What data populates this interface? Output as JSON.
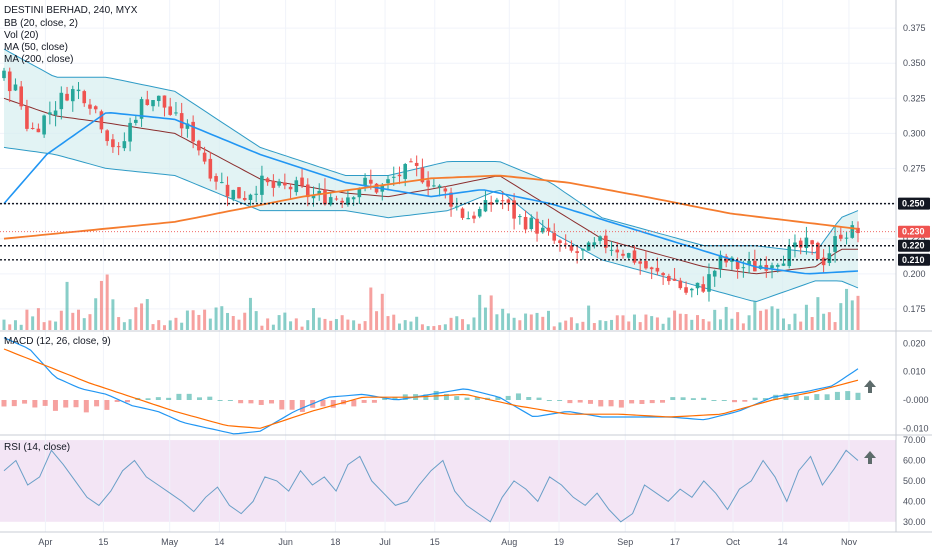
{
  "legend": {
    "symbol": "DESTINI BERHAD, 240, MYX",
    "bb": "BB (20, close, 2)",
    "vol": "Vol (20)",
    "ma50": "MA (50, close)",
    "ma200": "MA (200, close)",
    "macd": "MACD (12, 26, close, 9)",
    "rsi": "RSI (14, close)"
  },
  "price_axis": [
    "0.375",
    "0.350",
    "0.325",
    "0.300",
    "0.275",
    "0.250",
    "0.225",
    "0.200",
    "0.175"
  ],
  "macd_axis": [
    "0.020",
    "0.010",
    "-0.000",
    "-0.010"
  ],
  "rsi_axis": [
    "70.00",
    "60.00",
    "50.00",
    "40.00",
    "30.00"
  ],
  "time_axis": [
    "Apr",
    "15",
    "May",
    "14",
    "Jun",
    "18",
    "Jul",
    "15",
    "Aug",
    "19",
    "Sep",
    "17",
    "Oct",
    "14",
    "Nov"
  ],
  "tags": {
    "current": "0.230",
    "l250": "0.250",
    "l220": "0.220",
    "l210": "0.210"
  },
  "colors": {
    "up": "#26a69a",
    "down": "#ef5350",
    "bb_band": "#2e9bc6",
    "bb_fill": "#d6eef0",
    "basis": "#8b2e2e",
    "ma50": "#2196f3",
    "ma200": "#f57c2e",
    "macd_line": "#2196f3",
    "signal_line": "#ff6d00",
    "rsi_line": "#6a9fc7",
    "rsi_bg": "#f3e5f5",
    "arrow": "#5d6b6b"
  },
  "chart_data": [
    {
      "type": "candlestick",
      "title": "DESTINI BERHAD, 240, MYX",
      "x_start": "late Mar",
      "x_end": "late Oct",
      "ylim": [
        0.16,
        0.395
      ],
      "y_ticks": [
        0.375,
        0.35,
        0.325,
        0.3,
        0.275,
        0.25,
        0.225,
        0.2,
        0.175
      ],
      "close_anchors": {
        "x": [
          0,
          0.015,
          0.03,
          0.045,
          0.06,
          0.075,
          0.09,
          0.105,
          0.12,
          0.135,
          0.15,
          0.165,
          0.18,
          0.2,
          0.22,
          0.24,
          0.26,
          0.28,
          0.3,
          0.32,
          0.34,
          0.36,
          0.38,
          0.4,
          0.42,
          0.44,
          0.46,
          0.48,
          0.5,
          0.52,
          0.54,
          0.56,
          0.58,
          0.6,
          0.62,
          0.64,
          0.66,
          0.68,
          0.7,
          0.72,
          0.74,
          0.76,
          0.78,
          0.8,
          0.82,
          0.84,
          0.86,
          0.88,
          0.9,
          0.92,
          0.94,
          0.96,
          0.98,
          1.0
        ],
        "y": [
          0.34,
          0.33,
          0.3,
          0.31,
          0.32,
          0.33,
          0.33,
          0.32,
          0.3,
          0.285,
          0.31,
          0.325,
          0.325,
          0.31,
          0.3,
          0.275,
          0.26,
          0.255,
          0.265,
          0.26,
          0.262,
          0.255,
          0.255,
          0.255,
          0.265,
          0.26,
          0.27,
          0.275,
          0.265,
          0.255,
          0.24,
          0.245,
          0.255,
          0.24,
          0.235,
          0.225,
          0.215,
          0.215,
          0.222,
          0.218,
          0.21,
          0.2,
          0.198,
          0.186,
          0.192,
          0.21,
          0.205,
          0.205,
          0.21,
          0.215,
          0.22,
          0.21,
          0.23,
          0.23
        ]
      },
      "ma200": {
        "x": [
          0,
          0.2,
          0.35,
          0.5,
          0.58,
          0.66,
          0.75,
          0.85,
          1.0
        ],
        "y": [
          0.225,
          0.237,
          0.255,
          0.268,
          0.27,
          0.265,
          0.255,
          0.243,
          0.232
        ]
      },
      "ma50": {
        "x": [
          0,
          0.05,
          0.12,
          0.2,
          0.3,
          0.4,
          0.5,
          0.56,
          0.64,
          0.72,
          0.8,
          0.88,
          0.94,
          1.0
        ],
        "y": [
          0.25,
          0.285,
          0.315,
          0.31,
          0.285,
          0.265,
          0.255,
          0.26,
          0.25,
          0.235,
          0.22,
          0.205,
          0.2,
          0.202
        ]
      },
      "bb_upper": {
        "x": [
          0,
          0.06,
          0.12,
          0.2,
          0.3,
          0.4,
          0.45,
          0.52,
          0.58,
          0.64,
          0.7,
          0.76,
          0.82,
          0.88,
          0.95,
          0.98,
          1.0
        ],
        "y": [
          0.36,
          0.34,
          0.34,
          0.33,
          0.29,
          0.27,
          0.27,
          0.28,
          0.28,
          0.265,
          0.24,
          0.23,
          0.22,
          0.22,
          0.215,
          0.24,
          0.245
        ]
      },
      "bb_lower": {
        "x": [
          0,
          0.06,
          0.12,
          0.2,
          0.3,
          0.4,
          0.45,
          0.52,
          0.58,
          0.64,
          0.7,
          0.76,
          0.82,
          0.88,
          0.95,
          0.98,
          1.0
        ],
        "y": [
          0.29,
          0.285,
          0.275,
          0.27,
          0.245,
          0.245,
          0.24,
          0.245,
          0.26,
          0.23,
          0.21,
          0.2,
          0.19,
          0.18,
          0.195,
          0.195,
          0.19
        ]
      },
      "horizontal_lines": [
        0.25,
        0.22,
        0.21
      ],
      "last_price": 0.23
    },
    {
      "type": "bar",
      "title": "Vol (20)",
      "note": "volume histogram overlaid at bottom of price pane; relative heights 0-1",
      "volume_relative": [
        0.2,
        0.35,
        0.15,
        0.6,
        0.25,
        1.0,
        0.3,
        0.45,
        0.2,
        0.15,
        0.4,
        0.3,
        0.25,
        0.5,
        0.2,
        0.3,
        0.15,
        0.35,
        0.2,
        0.25,
        0.6,
        0.3,
        0.2,
        0.15,
        0.25,
        0.2,
        0.45,
        0.3,
        0.2,
        0.25,
        0.15,
        0.2,
        0.3,
        0.25,
        0.2,
        0.3,
        0.25,
        0.35,
        0.2,
        0.3,
        0.25,
        0.5,
        0.3,
        0.2,
        0.45,
        0.3,
        0.6,
        0.7
      ]
    },
    {
      "type": "line",
      "title": "MACD (12, 26, close, 9)",
      "ylim": [
        -0.012,
        0.024
      ],
      "y_ticks": [
        0.02,
        0.01,
        0.0,
        -0.01
      ],
      "macd": {
        "x": [
          0,
          0.03,
          0.06,
          0.09,
          0.12,
          0.15,
          0.18,
          0.21,
          0.24,
          0.27,
          0.3,
          0.34,
          0.38,
          0.42,
          0.46,
          0.5,
          0.54,
          0.58,
          0.62,
          0.66,
          0.7,
          0.74,
          0.78,
          0.82,
          0.86,
          0.9,
          0.94,
          0.97,
          1.0
        ],
        "y": [
          0.022,
          0.018,
          0.008,
          0.004,
          0.002,
          -0.002,
          -0.004,
          -0.008,
          -0.01,
          -0.012,
          -0.011,
          -0.004,
          0.001,
          0.002,
          0.0,
          0.002,
          0.004,
          0.001,
          -0.006,
          -0.004,
          -0.006,
          -0.006,
          -0.006,
          -0.007,
          -0.004,
          0.001,
          0.003,
          0.005,
          0.011
        ]
      },
      "signal": {
        "x": [
          0,
          0.05,
          0.1,
          0.15,
          0.2,
          0.26,
          0.3,
          0.36,
          0.42,
          0.48,
          0.54,
          0.6,
          0.66,
          0.72,
          0.78,
          0.84,
          0.9,
          0.95,
          1.0
        ],
        "y": [
          0.018,
          0.012,
          0.006,
          0.001,
          -0.004,
          -0.009,
          -0.01,
          -0.004,
          0.001,
          0.001,
          0.002,
          -0.002,
          -0.005,
          -0.005,
          -0.006,
          -0.005,
          0.0,
          0.003,
          0.007
        ]
      },
      "histogram": [
        -0.002,
        -0.003,
        -0.004,
        -0.004,
        -0.003,
        -0.001,
        0.001,
        0.001,
        0.002,
        0.001,
        0.0,
        -0.001,
        -0.002,
        -0.003,
        -0.004,
        -0.003,
        -0.002,
        -0.001,
        0.001,
        0.002,
        0.003,
        0.002,
        0.001,
        0.001,
        0.002,
        0.001,
        0.0,
        -0.001,
        -0.002,
        -0.003,
        -0.002,
        -0.001,
        0.001,
        0.001,
        0.0,
        -0.001,
        0.001,
        0.002,
        0.002,
        0.003,
        0.004,
        0.004
      ]
    },
    {
      "type": "line",
      "title": "RSI (14, close)",
      "ylim": [
        25,
        72
      ],
      "y_ticks": [
        70,
        60,
        50,
        40,
        30
      ],
      "rsi": [
        55,
        60,
        48,
        52,
        65,
        58,
        50,
        42,
        38,
        45,
        55,
        60,
        52,
        48,
        44,
        40,
        35,
        42,
        47,
        38,
        34,
        40,
        52,
        50,
        45,
        55,
        48,
        52,
        45,
        58,
        62,
        50,
        44,
        38,
        40,
        48,
        55,
        60,
        45,
        38,
        34,
        30,
        42,
        50,
        46,
        40,
        52,
        48,
        42,
        38,
        44,
        36,
        30,
        34,
        48,
        44,
        40,
        46,
        42,
        50,
        44,
        36,
        46,
        50,
        60,
        52,
        40,
        55,
        62,
        48,
        56,
        65,
        60
      ]
    }
  ]
}
